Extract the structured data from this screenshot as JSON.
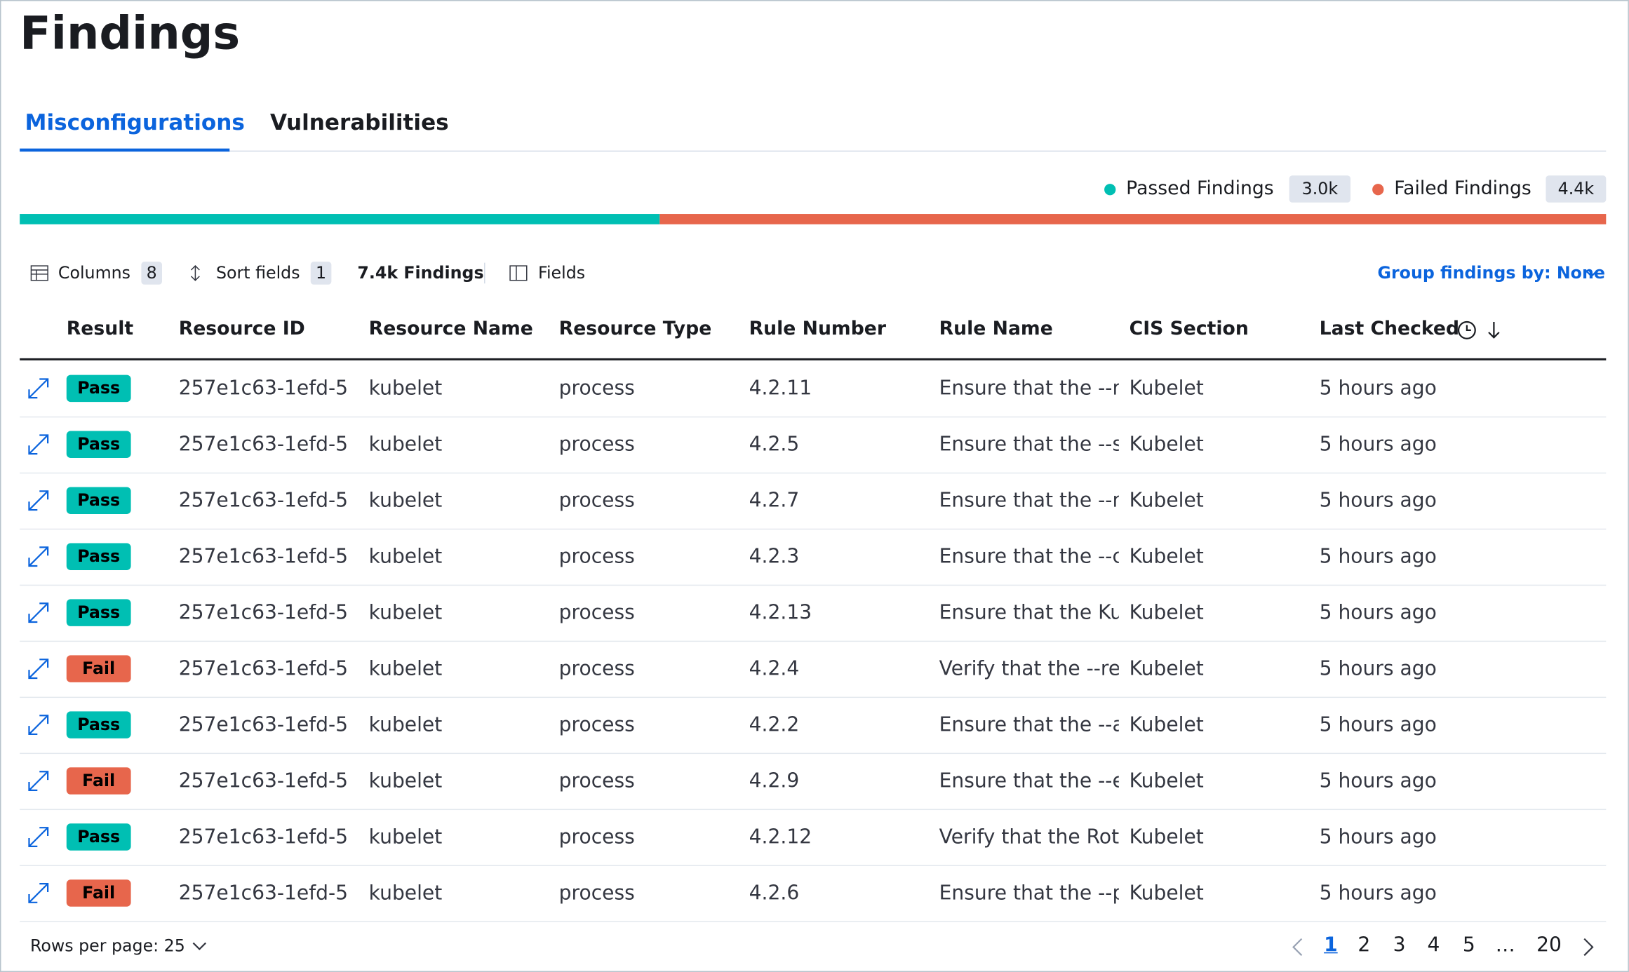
{
  "header": {
    "title": "Findings"
  },
  "tabs": [
    {
      "label": "Misconfigurations",
      "color": "#0b64dd"
    },
    {
      "label": "Vulnerabilities",
      "color": "#1a1c21"
    }
  ],
  "summary": [
    {
      "label": "Passed Findings",
      "count": "3.0k",
      "color": "#00bfb3"
    },
    {
      "label": "Failed Findings",
      "count": "4.4k",
      "color": "#e7664c"
    }
  ],
  "toolbar": {
    "columns": "Columns",
    "columns_count": "8",
    "sort": "Sort fields",
    "sort_count": "1",
    "total": "7.4k Findings",
    "fields": "Fields",
    "group_by": "Group findings by: None"
  },
  "table": {
    "columns": [
      "Result",
      "Resource ID",
      "Resource Name",
      "Resource Type",
      "Rule Number",
      "Rule Name",
      "CIS Section",
      "Last Checked"
    ],
    "rows": [
      {
        "color": "#00bfb3",
        "cells": [
          "Pass",
          "257e1c63-1efd-5",
          "kubelet",
          "process",
          "4.2.11",
          "Ensure that the --r",
          "Kubelet",
          "5 hours ago"
        ]
      },
      {
        "color": "#00bfb3",
        "cells": [
          "Pass",
          "257e1c63-1efd-5",
          "kubelet",
          "process",
          "4.2.5",
          "Ensure that the --s",
          "Kubelet",
          "5 hours ago"
        ]
      },
      {
        "color": "#00bfb3",
        "cells": [
          "Pass",
          "257e1c63-1efd-5",
          "kubelet",
          "process",
          "4.2.7",
          "Ensure that the --m",
          "Kubelet",
          "5 hours ago"
        ]
      },
      {
        "color": "#00bfb3",
        "cells": [
          "Pass",
          "257e1c63-1efd-5",
          "kubelet",
          "process",
          "4.2.3",
          "Ensure that the --c",
          "Kubelet",
          "5 hours ago"
        ]
      },
      {
        "color": "#00bfb3",
        "cells": [
          "Pass",
          "257e1c63-1efd-5",
          "kubelet",
          "process",
          "4.2.13",
          "Ensure that the Kub",
          "Kubelet",
          "5 hours ago"
        ]
      },
      {
        "color": "#e7664c",
        "cells": [
          "Fail",
          "257e1c63-1efd-5",
          "kubelet",
          "process",
          "4.2.4",
          "Verify that the --rea",
          "Kubelet",
          "5 hours ago"
        ]
      },
      {
        "color": "#00bfb3",
        "cells": [
          "Pass",
          "257e1c63-1efd-5",
          "kubelet",
          "process",
          "4.2.2",
          "Ensure that the --a",
          "Kubelet",
          "5 hours ago"
        ]
      },
      {
        "color": "#e7664c",
        "cells": [
          "Fail",
          "257e1c63-1efd-5",
          "kubelet",
          "process",
          "4.2.9",
          "Ensure that the --e",
          "Kubelet",
          "5 hours ago"
        ]
      },
      {
        "color": "#00bfb3",
        "cells": [
          "Pass",
          "257e1c63-1efd-5",
          "kubelet",
          "process",
          "4.2.12",
          "Verify that the Rota",
          "Kubelet",
          "5 hours ago"
        ]
      },
      {
        "color": "#e7664c",
        "cells": [
          "Fail",
          "257e1c63-1efd-5",
          "kubelet",
          "process",
          "4.2.6",
          "Ensure that the --p",
          "Kubelet",
          "5 hours ago"
        ]
      }
    ]
  },
  "pagination": {
    "rows_per_page": "Rows per page: 25",
    "pages": [
      "1",
      "2",
      "3",
      "4",
      "5",
      "…",
      "20"
    ]
  }
}
